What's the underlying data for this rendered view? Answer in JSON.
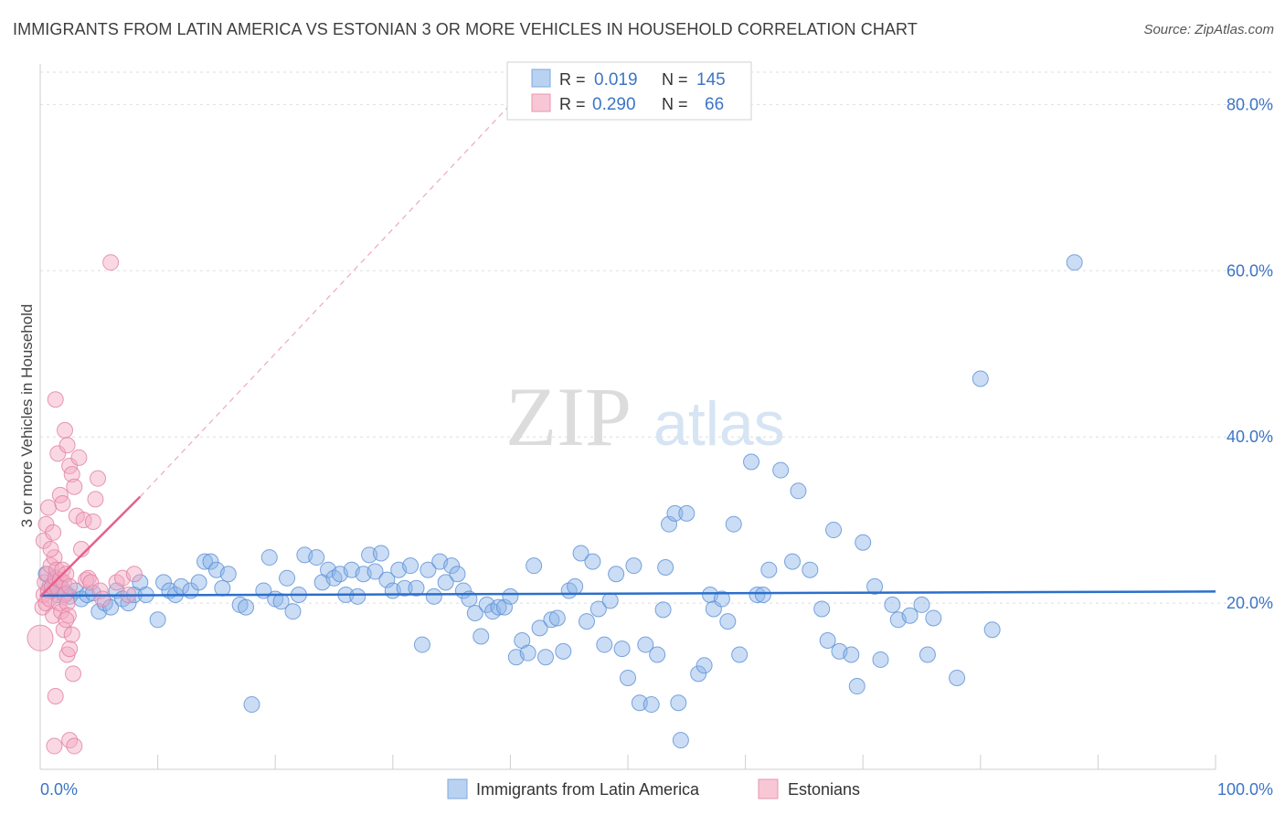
{
  "chart_data": {
    "type": "scatter",
    "title": "IMMIGRANTS FROM LATIN AMERICA VS ESTONIAN 3 OR MORE VEHICLES IN HOUSEHOLD CORRELATION CHART",
    "source": "Source: ZipAtlas.com",
    "watermark": {
      "zip": "ZIP",
      "atlas": "atlas"
    },
    "ylabel": "3 or more Vehicles in Household",
    "xlim": [
      0,
      100
    ],
    "ylim": [
      0,
      84
    ],
    "x_tick_labels": {
      "left": "0.0%",
      "right": "100.0%"
    },
    "y_ticks": [
      {
        "value": 20,
        "label": "20.0%"
      },
      {
        "value": 40,
        "label": "40.0%"
      },
      {
        "value": 60,
        "label": "60.0%"
      },
      {
        "value": 80,
        "label": "80.0%"
      }
    ],
    "legend_box": {
      "rows": [
        {
          "r_label": "R =",
          "r_value": "0.019",
          "n_label": "N =",
          "n_value": "145"
        },
        {
          "r_label": "R =",
          "r_value": "0.290",
          "n_label": "N =",
          "n_value": "66"
        }
      ]
    },
    "series": [
      {
        "name": "Immigrants from Latin America",
        "color": "#8ab4e8",
        "edge": "#5b8fd4",
        "line_color": "#2b6fcc",
        "trend": {
          "x0": 0,
          "y0": 20.9,
          "x1": 100,
          "y1": 21.4
        },
        "points": [
          [
            0.5,
            23.5
          ],
          [
            0.8,
            22.0
          ],
          [
            1.0,
            21.5
          ],
          [
            1.2,
            22.5
          ],
          [
            1.5,
            21.0
          ],
          [
            1.8,
            21.8
          ],
          [
            2.2,
            21.2
          ],
          [
            2.5,
            20.8
          ],
          [
            3.0,
            21.5
          ],
          [
            3.5,
            20.5
          ],
          [
            4.0,
            21.0
          ],
          [
            4.5,
            21.2
          ],
          [
            5.0,
            19.0
          ],
          [
            5.5,
            20.0
          ],
          [
            6.0,
            19.5
          ],
          [
            6.5,
            21.5
          ],
          [
            7.0,
            20.5
          ],
          [
            7.5,
            20.0
          ],
          [
            8.0,
            21.0
          ],
          [
            8.5,
            22.5
          ],
          [
            9.0,
            21.0
          ],
          [
            10.0,
            18.0
          ],
          [
            10.5,
            22.5
          ],
          [
            11.0,
            21.5
          ],
          [
            11.5,
            21.0
          ],
          [
            12.0,
            22.0
          ],
          [
            12.8,
            21.5
          ],
          [
            13.5,
            22.5
          ],
          [
            14.0,
            25.0
          ],
          [
            14.5,
            25.0
          ],
          [
            15.0,
            24.0
          ],
          [
            15.5,
            21.8
          ],
          [
            16.0,
            23.5
          ],
          [
            17.0,
            19.8
          ],
          [
            17.5,
            19.5
          ],
          [
            18.0,
            7.8
          ],
          [
            19.0,
            21.5
          ],
          [
            19.5,
            25.5
          ],
          [
            20.0,
            20.5
          ],
          [
            20.5,
            20.2
          ],
          [
            21.0,
            23.0
          ],
          [
            21.5,
            19.0
          ],
          [
            22.0,
            21.0
          ],
          [
            22.5,
            25.8
          ],
          [
            23.5,
            25.5
          ],
          [
            24.0,
            22.5
          ],
          [
            24.5,
            24.0
          ],
          [
            25.0,
            23.0
          ],
          [
            25.5,
            23.5
          ],
          [
            26.0,
            21.0
          ],
          [
            26.5,
            24.0
          ],
          [
            27.0,
            20.8
          ],
          [
            27.5,
            23.5
          ],
          [
            28.0,
            25.8
          ],
          [
            28.5,
            23.8
          ],
          [
            29.0,
            26.0
          ],
          [
            29.5,
            22.8
          ],
          [
            30.0,
            21.5
          ],
          [
            30.5,
            24.0
          ],
          [
            31.0,
            21.8
          ],
          [
            31.5,
            24.5
          ],
          [
            32.0,
            21.8
          ],
          [
            32.5,
            15.0
          ],
          [
            33.0,
            24.0
          ],
          [
            33.5,
            20.8
          ],
          [
            34.0,
            25.0
          ],
          [
            34.5,
            22.5
          ],
          [
            35.0,
            24.5
          ],
          [
            35.5,
            23.5
          ],
          [
            36.0,
            21.5
          ],
          [
            36.5,
            20.5
          ],
          [
            37.0,
            18.8
          ],
          [
            37.5,
            16.0
          ],
          [
            38.0,
            19.8
          ],
          [
            38.5,
            19.0
          ],
          [
            39.0,
            19.5
          ],
          [
            39.5,
            19.5
          ],
          [
            40.0,
            20.8
          ],
          [
            40.5,
            13.5
          ],
          [
            41.0,
            15.5
          ],
          [
            41.5,
            14.0
          ],
          [
            42.0,
            24.5
          ],
          [
            42.5,
            17.0
          ],
          [
            43.0,
            13.5
          ],
          [
            43.5,
            18.0
          ],
          [
            44.0,
            18.2
          ],
          [
            44.5,
            14.2
          ],
          [
            45.0,
            21.5
          ],
          [
            45.5,
            22.0
          ],
          [
            46.0,
            26.0
          ],
          [
            46.5,
            17.8
          ],
          [
            47.0,
            25.0
          ],
          [
            47.5,
            19.3
          ],
          [
            48.0,
            15.0
          ],
          [
            48.5,
            20.3
          ],
          [
            49.0,
            23.5
          ],
          [
            49.5,
            14.5
          ],
          [
            50.0,
            11.0
          ],
          [
            50.5,
            24.5
          ],
          [
            51.0,
            8.0
          ],
          [
            51.5,
            15.0
          ],
          [
            52.0,
            7.8
          ],
          [
            52.5,
            13.8
          ],
          [
            53.0,
            19.2
          ],
          [
            53.2,
            24.3
          ],
          [
            53.5,
            29.5
          ],
          [
            54.0,
            30.8
          ],
          [
            54.3,
            8.0
          ],
          [
            54.5,
            3.5
          ],
          [
            55.0,
            30.8
          ],
          [
            56.0,
            11.5
          ],
          [
            56.5,
            12.5
          ],
          [
            57.0,
            21.0
          ],
          [
            57.3,
            19.3
          ],
          [
            58.0,
            20.5
          ],
          [
            58.5,
            17.8
          ],
          [
            59.0,
            29.5
          ],
          [
            59.5,
            13.8
          ],
          [
            60.5,
            37.0
          ],
          [
            61.0,
            21.0
          ],
          [
            61.5,
            21.0
          ],
          [
            62.0,
            24.0
          ],
          [
            63.0,
            36.0
          ],
          [
            64.0,
            25.0
          ],
          [
            64.5,
            33.5
          ],
          [
            65.5,
            24.0
          ],
          [
            66.5,
            19.3
          ],
          [
            67.0,
            15.5
          ],
          [
            67.5,
            28.8
          ],
          [
            68.0,
            14.2
          ],
          [
            69.0,
            13.8
          ],
          [
            69.5,
            10.0
          ],
          [
            70.0,
            27.3
          ],
          [
            71.0,
            22.0
          ],
          [
            71.5,
            13.2
          ],
          [
            72.5,
            19.8
          ],
          [
            73.0,
            18.0
          ],
          [
            74.0,
            18.5
          ],
          [
            75.0,
            19.8
          ],
          [
            75.5,
            13.8
          ],
          [
            76.0,
            18.2
          ],
          [
            78.0,
            11.0
          ],
          [
            80.0,
            47.0
          ],
          [
            81.0,
            16.8
          ],
          [
            88.0,
            61.0
          ]
        ]
      },
      {
        "name": "Estonians",
        "color": "#f4a8c0",
        "edge": "#e07fa2",
        "line_color": "#e8608c",
        "trend": {
          "x0": 0,
          "y0": 20.8,
          "x1": 8.5,
          "y1": 32.8
        },
        "trend_extension": {
          "x0": 8.5,
          "y0": 32.8,
          "x1": 40,
          "y1": 80
        },
        "points": [
          [
            0.0,
            15.8
          ],
          [
            0.2,
            19.5
          ],
          [
            0.3,
            21.0
          ],
          [
            0.4,
            22.5
          ],
          [
            0.5,
            20.0
          ],
          [
            0.6,
            23.5
          ],
          [
            0.7,
            21.5
          ],
          [
            0.8,
            20.5
          ],
          [
            0.9,
            24.5
          ],
          [
            1.0,
            22.0
          ],
          [
            1.1,
            18.5
          ],
          [
            1.2,
            25.5
          ],
          [
            1.3,
            23.0
          ],
          [
            1.4,
            24.0
          ],
          [
            1.5,
            21.8
          ],
          [
            1.6,
            20.0
          ],
          [
            1.7,
            22.8
          ],
          [
            1.8,
            19.0
          ],
          [
            1.9,
            24.0
          ],
          [
            2.0,
            22.5
          ],
          [
            2.1,
            21.0
          ],
          [
            2.2,
            23.5
          ],
          [
            2.3,
            20.0
          ],
          [
            2.4,
            18.5
          ],
          [
            2.5,
            22.0
          ],
          [
            0.3,
            27.5
          ],
          [
            0.5,
            29.5
          ],
          [
            0.7,
            31.5
          ],
          [
            0.9,
            26.5
          ],
          [
            1.1,
            28.5
          ],
          [
            1.3,
            44.5
          ],
          [
            1.5,
            38.0
          ],
          [
            1.7,
            33.0
          ],
          [
            1.9,
            32.0
          ],
          [
            2.1,
            40.8
          ],
          [
            2.3,
            39.0
          ],
          [
            2.5,
            36.5
          ],
          [
            2.7,
            35.5
          ],
          [
            2.9,
            34.0
          ],
          [
            3.1,
            30.5
          ],
          [
            3.3,
            37.5
          ],
          [
            3.5,
            26.5
          ],
          [
            3.7,
            30.0
          ],
          [
            3.9,
            22.8
          ],
          [
            4.1,
            23.0
          ],
          [
            4.3,
            22.5
          ],
          [
            4.5,
            29.8
          ],
          [
            4.7,
            32.5
          ],
          [
            4.9,
            35.0
          ],
          [
            5.1,
            21.5
          ],
          [
            5.3,
            20.5
          ],
          [
            6.0,
            61.0
          ],
          [
            6.5,
            22.5
          ],
          [
            7.0,
            23.0
          ],
          [
            7.5,
            21.0
          ],
          [
            8.0,
            23.5
          ],
          [
            2.0,
            16.8
          ],
          [
            2.3,
            13.8
          ],
          [
            2.5,
            14.5
          ],
          [
            2.7,
            16.2
          ],
          [
            2.8,
            11.5
          ],
          [
            1.3,
            8.8
          ],
          [
            1.2,
            2.8
          ],
          [
            2.5,
            3.5
          ],
          [
            2.9,
            2.8
          ],
          [
            2.2,
            18.0
          ]
        ]
      }
    ],
    "legend": [
      {
        "label": "Immigrants from Latin America"
      },
      {
        "label": "Estonians"
      }
    ]
  }
}
